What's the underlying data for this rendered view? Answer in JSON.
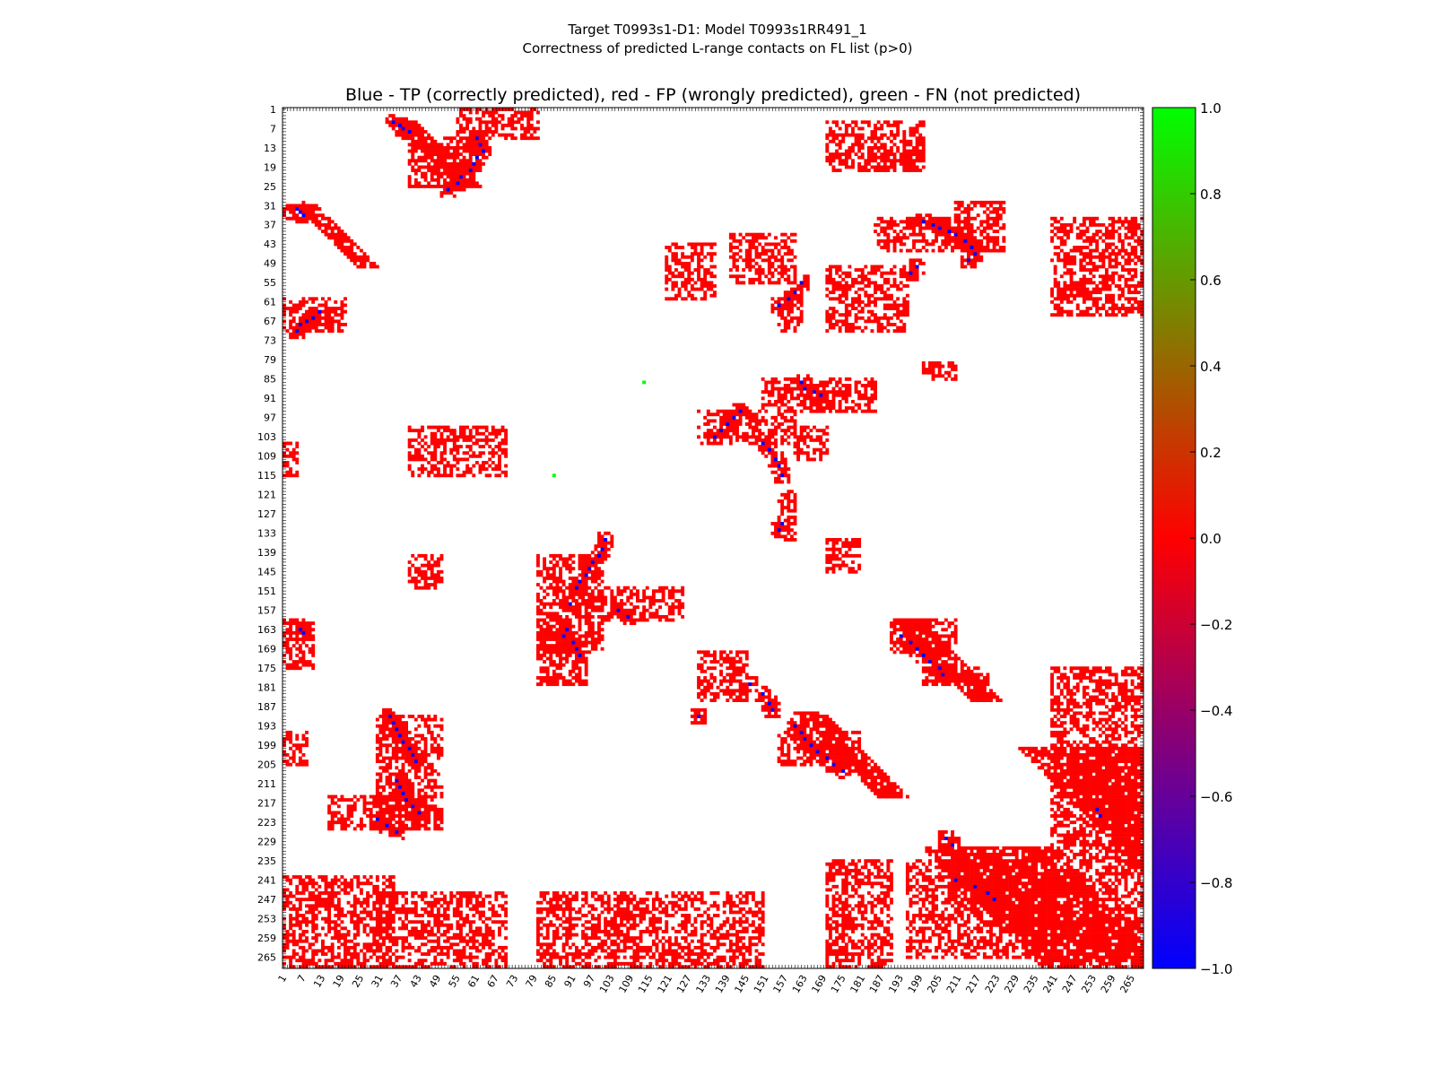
{
  "chart_data": {
    "type": "heatmap",
    "title_lines": [
      "Target T0993s1-D1: Model T0993s1RR491_1",
      "Correctness of predicted L-range contacts on FL list (p>0)"
    ],
    "subtitle": "Blue - TP (correctly predicted), red - FP (wrongly predicted), green - FN (not predicted)",
    "residue_range": [
      1,
      268
    ],
    "ticks": [
      1,
      7,
      13,
      19,
      25,
      31,
      37,
      43,
      49,
      55,
      61,
      67,
      73,
      79,
      85,
      91,
      97,
      103,
      109,
      115,
      121,
      127,
      133,
      139,
      145,
      151,
      157,
      163,
      169,
      175,
      181,
      187,
      193,
      199,
      205,
      211,
      217,
      223,
      229,
      235,
      241,
      247,
      253,
      259,
      265
    ],
    "colorbar": {
      "range": [
        -1.0,
        1.0
      ],
      "ticks": [
        "1.0",
        "0.8",
        "0.6",
        "0.4",
        "0.2",
        "0.0",
        "−0.2",
        "−0.4",
        "−0.6",
        "−0.8",
        "−1.0"
      ],
      "colors": [
        "#0000ff",
        "#ff0000",
        "#00ff00"
      ]
    },
    "category_colors": {
      "TP": "#0000ff",
      "FP": "#ff0000",
      "FN": "#00ff00"
    },
    "fp_regions": [
      [
        31,
        35,
        1,
        10
      ],
      [
        60,
        70,
        1,
        20
      ],
      [
        100,
        115,
        40,
        70
      ],
      [
        43,
        60,
        120,
        135
      ],
      [
        35,
        45,
        185,
        215
      ],
      [
        1,
        10,
        55,
        80
      ],
      [
        5,
        20,
        170,
        200
      ],
      [
        30,
        45,
        210,
        225
      ],
      [
        35,
        65,
        240,
        268
      ],
      [
        175,
        265,
        240,
        268
      ],
      [
        40,
        55,
        140,
        160
      ],
      [
        85,
        95,
        150,
        185
      ],
      [
        95,
        105,
        130,
        160
      ],
      [
        10,
        25,
        40,
        60
      ],
      [
        240,
        268,
        1,
        35
      ],
      [
        245,
        268,
        30,
        70
      ],
      [
        245,
        268,
        80,
        150
      ],
      [
        235,
        268,
        170,
        190
      ],
      [
        235,
        265,
        195,
        240
      ],
      [
        140,
        170,
        80,
        100
      ],
      [
        165,
        180,
        80,
        95
      ],
      [
        190,
        225,
        30,
        50
      ],
      [
        215,
        225,
        15,
        45
      ],
      [
        140,
        150,
        40,
        50
      ],
      [
        160,
        170,
        80,
        90
      ],
      [
        170,
        185,
        130,
        145
      ],
      [
        150,
        160,
        100,
        125
      ],
      [
        50,
        70,
        170,
        195
      ],
      [
        60,
        70,
        155,
        162
      ],
      [
        120,
        135,
        155,
        160
      ],
      [
        195,
        205,
        155,
        180
      ],
      [
        100,
        110,
        160,
        170
      ],
      [
        135,
        145,
        170,
        180
      ],
      [
        160,
        170,
        190,
        210
      ],
      [
        175,
        180,
        200,
        220
      ],
      [
        80,
        85,
        200,
        210
      ],
      [
        15,
        20,
        185,
        200
      ],
      [
        160,
        175,
        1,
        10
      ],
      [
        195,
        205,
        1,
        8
      ],
      [
        105,
        115,
        1,
        5
      ]
    ],
    "diagonal_bands": [
      {
        "i_from": 5,
        "i_to": 25,
        "j_start": 35,
        "width": 8
      },
      {
        "i_from": 31,
        "i_to": 50,
        "j_start": 5,
        "width": 7
      },
      {
        "i_from": 160,
        "i_to": 185,
        "j_start": 190,
        "width": 10
      },
      {
        "i_from": 189,
        "i_to": 215,
        "j_start": 160,
        "width": 10
      },
      {
        "i_from": 200,
        "i_to": 243,
        "j_start": 230,
        "width": 40
      },
      {
        "i_from": 231,
        "i_to": 268,
        "j_start": 200,
        "width": 40
      }
    ],
    "tp_contacts": [
      [
        5,
        35
      ],
      [
        6,
        37
      ],
      [
        7,
        38
      ],
      [
        8,
        40
      ],
      [
        10,
        61
      ],
      [
        12,
        62
      ],
      [
        14,
        63
      ],
      [
        16,
        61
      ],
      [
        18,
        60
      ],
      [
        20,
        59
      ],
      [
        22,
        56
      ],
      [
        24,
        55
      ],
      [
        26,
        52
      ],
      [
        32,
        5
      ],
      [
        33,
        6
      ],
      [
        34,
        7
      ],
      [
        36,
        200
      ],
      [
        37,
        203
      ],
      [
        38,
        205
      ],
      [
        39,
        208
      ],
      [
        40,
        210
      ],
      [
        42,
        213
      ],
      [
        44,
        215
      ],
      [
        46,
        216
      ],
      [
        48,
        214
      ],
      [
        50,
        198
      ],
      [
        52,
        196
      ],
      [
        55,
        162
      ],
      [
        58,
        160
      ],
      [
        60,
        158
      ],
      [
        62,
        155
      ],
      [
        64,
        12
      ],
      [
        66,
        10
      ],
      [
        67,
        8
      ],
      [
        68,
        6
      ],
      [
        70,
        5
      ],
      [
        86,
        162
      ],
      [
        88,
        163
      ],
      [
        89,
        166
      ],
      [
        90,
        168
      ],
      [
        95,
        143
      ],
      [
        97,
        141
      ],
      [
        99,
        139
      ],
      [
        101,
        137
      ],
      [
        103,
        135
      ],
      [
        105,
        150
      ],
      [
        107,
        152
      ],
      [
        110,
        154
      ],
      [
        112,
        155
      ],
      [
        115,
        156
      ],
      [
        130,
        156
      ],
      [
        132,
        155
      ],
      [
        135,
        101
      ],
      [
        138,
        100
      ],
      [
        140,
        99
      ],
      [
        142,
        97
      ],
      [
        144,
        96
      ],
      [
        146,
        95
      ],
      [
        148,
        93
      ],
      [
        150,
        92
      ],
      [
        155,
        90
      ],
      [
        157,
        105
      ],
      [
        159,
        108
      ],
      [
        163,
        89
      ],
      [
        165,
        88
      ],
      [
        167,
        91
      ],
      [
        169,
        92
      ],
      [
        171,
        93
      ],
      [
        163,
        6
      ],
      [
        164,
        7
      ],
      [
        165,
        193
      ],
      [
        167,
        196
      ],
      [
        169,
        198
      ],
      [
        171,
        200
      ],
      [
        173,
        202
      ],
      [
        175,
        205
      ],
      [
        177,
        206
      ],
      [
        180,
        146
      ],
      [
        183,
        150
      ],
      [
        186,
        152
      ],
      [
        188,
        153
      ],
      [
        190,
        130
      ],
      [
        193,
        160
      ],
      [
        195,
        162
      ],
      [
        197,
        163
      ],
      [
        199,
        165
      ],
      [
        201,
        167
      ],
      [
        203,
        170
      ],
      [
        205,
        172
      ],
      [
        207,
        175
      ],
      [
        190,
        34
      ],
      [
        192,
        35
      ],
      [
        194,
        36
      ],
      [
        196,
        37
      ],
      [
        198,
        38
      ],
      [
        200,
        40
      ],
      [
        202,
        41
      ],
      [
        204,
        42
      ],
      [
        210,
        36
      ],
      [
        212,
        37
      ],
      [
        214,
        38
      ],
      [
        216,
        39
      ],
      [
        218,
        41
      ],
      [
        220,
        43
      ],
      [
        222,
        30
      ],
      [
        224,
        33
      ],
      [
        226,
        36
      ],
      [
        221,
        255
      ],
      [
        219,
        254
      ],
      [
        228,
        207
      ],
      [
        230,
        209
      ],
      [
        241,
        210
      ],
      [
        243,
        216
      ],
      [
        245,
        220
      ],
      [
        247,
        222
      ]
    ],
    "fn_contacts": [
      [
        86,
        113
      ],
      [
        115,
        85
      ]
    ]
  }
}
